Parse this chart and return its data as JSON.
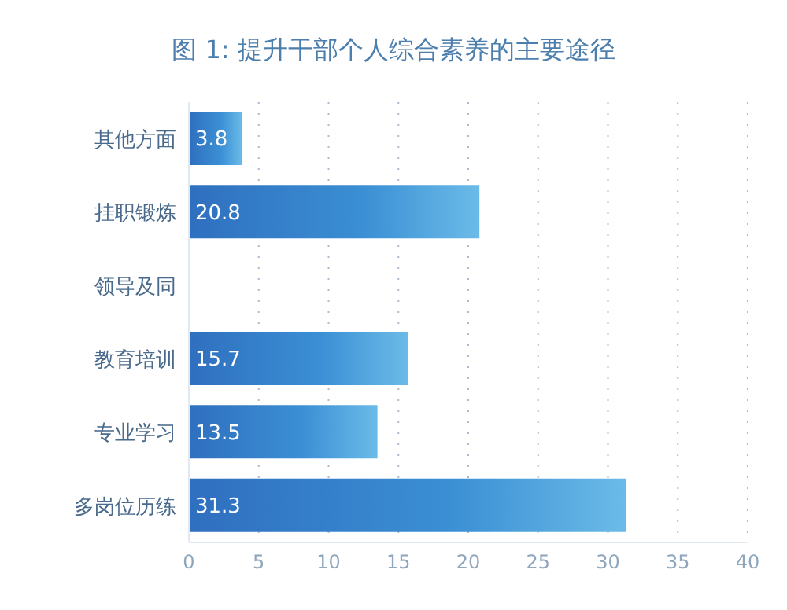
{
  "chart_data": {
    "type": "bar",
    "orientation": "horizontal",
    "title": "图 1:  提升干部个人综合素养的主要途径",
    "categories": [
      "其他方面",
      "挂职锻炼",
      "领导及同",
      "教育培训",
      "专业学习",
      "多岗位历练"
    ],
    "values": [
      3.8,
      20.8,
      null,
      15.7,
      13.5,
      31.3
    ],
    "color": "#3b8fd4",
    "xlim": [
      0,
      40
    ],
    "xticks": [
      0,
      5,
      10,
      15,
      20,
      25,
      30,
      35,
      40
    ],
    "grid": "x",
    "data_labels": true
  }
}
